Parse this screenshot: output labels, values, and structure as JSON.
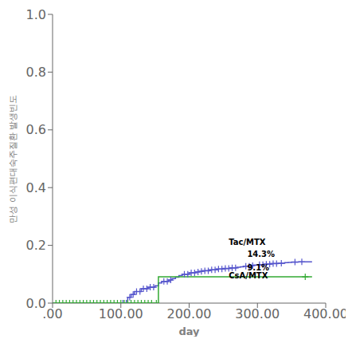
{
  "chart_data": {
    "type": "line",
    "xlabel": "day",
    "ylabel": "만성 이식편대숙주질환 발생빈도",
    "xlim": [
      0,
      400
    ],
    "ylim": [
      0,
      1.0
    ],
    "xticks": [
      {
        "value": 0,
        "label": ".00"
      },
      {
        "value": 100,
        "label": "100.00"
      },
      {
        "value": 200,
        "label": "200.00"
      },
      {
        "value": 300,
        "label": "300.00"
      },
      {
        "value": 400,
        "label": "400.00"
      }
    ],
    "yticks": [
      {
        "value": 0.0,
        "label": "0.0"
      },
      {
        "value": 0.2,
        "label": "0.2"
      },
      {
        "value": 0.4,
        "label": "0.4"
      },
      {
        "value": 0.6,
        "label": "0.6"
      },
      {
        "value": 0.8,
        "label": "0.8"
      },
      {
        "value": 1.0,
        "label": "1.0"
      }
    ],
    "grid": false,
    "series": [
      {
        "type": "line",
        "line_style": "step",
        "color": "#5555cc",
        "x": [
          0,
          100,
          110,
          115,
          120,
          130,
          140,
          150,
          155,
          160,
          170,
          175,
          180,
          185,
          190,
          200,
          210,
          215,
          220,
          230,
          240,
          250,
          260,
          270,
          275,
          280,
          290,
          295,
          300,
          310,
          320,
          330,
          340,
          345,
          350,
          360,
          370,
          380
        ],
        "values": [
          0.0,
          0.0,
          0.02,
          0.03,
          0.04,
          0.05,
          0.055,
          0.06,
          0.07,
          0.075,
          0.08,
          0.085,
          0.09,
          0.095,
          0.1,
          0.105,
          0.108,
          0.11,
          0.112,
          0.115,
          0.118,
          0.12,
          0.122,
          0.124,
          0.126,
          0.128,
          0.13,
          0.132,
          0.133,
          0.135,
          0.137,
          0.138,
          0.14,
          0.141,
          0.142,
          0.143,
          0.143,
          0.143
        ]
      },
      {
        "type": "line",
        "line_style": "step",
        "color": "#33aa33",
        "x": [
          0,
          150,
          155,
          380
        ],
        "values": [
          0.0,
          0.0,
          0.091,
          0.091
        ]
      },
      {
        "type": "scatter",
        "marker": "+",
        "color": "#5555cc",
        "x": [
          103,
          108,
          113,
          118,
          123,
          128,
          133,
          138,
          143,
          148,
          163,
          168,
          173,
          193,
          198,
          203,
          208,
          213,
          218,
          223,
          228,
          233,
          238,
          243,
          248,
          253,
          258,
          263,
          268,
          283,
          288,
          293,
          303,
          308,
          313,
          318,
          323,
          328,
          335,
          355,
          365
        ],
        "values": [
          0.0,
          0.0,
          0.02,
          0.03,
          0.04,
          0.04,
          0.05,
          0.05,
          0.055,
          0.055,
          0.075,
          0.075,
          0.08,
          0.1,
          0.1,
          0.105,
          0.105,
          0.108,
          0.11,
          0.112,
          0.112,
          0.115,
          0.115,
          0.118,
          0.118,
          0.12,
          0.12,
          0.122,
          0.122,
          0.128,
          0.128,
          0.13,
          0.133,
          0.133,
          0.135,
          0.135,
          0.137,
          0.137,
          0.138,
          0.142,
          0.143
        ]
      },
      {
        "type": "scatter",
        "marker": "+",
        "color": "#33aa33",
        "x": [
          5,
          10,
          15,
          20,
          25,
          30,
          35,
          40,
          45,
          50,
          55,
          60,
          65,
          70,
          75,
          80,
          85,
          90,
          95,
          100,
          105,
          110,
          115,
          120,
          125,
          130,
          135,
          140,
          145,
          152,
          370
        ],
        "values": [
          0.0,
          0.0,
          0.0,
          0.0,
          0.0,
          0.0,
          0.0,
          0.0,
          0.0,
          0.0,
          0.0,
          0.0,
          0.0,
          0.0,
          0.0,
          0.0,
          0.0,
          0.0,
          0.0,
          0.0,
          0.0,
          0.0,
          0.0,
          0.0,
          0.0,
          0.0,
          0.0,
          0.0,
          0.0,
          0.0,
          0.091
        ]
      }
    ],
    "annotations": [
      {
        "text": "Tac/MTX",
        "x": 258,
        "y": 0.2
      },
      {
        "text": "14.3%",
        "x": 285,
        "y": 0.158
      },
      {
        "text": "9.1%",
        "x": 285,
        "y": 0.135
      },
      {
        "text": "CsA/MTX",
        "x": 258,
        "y": 0.108
      }
    ]
  }
}
